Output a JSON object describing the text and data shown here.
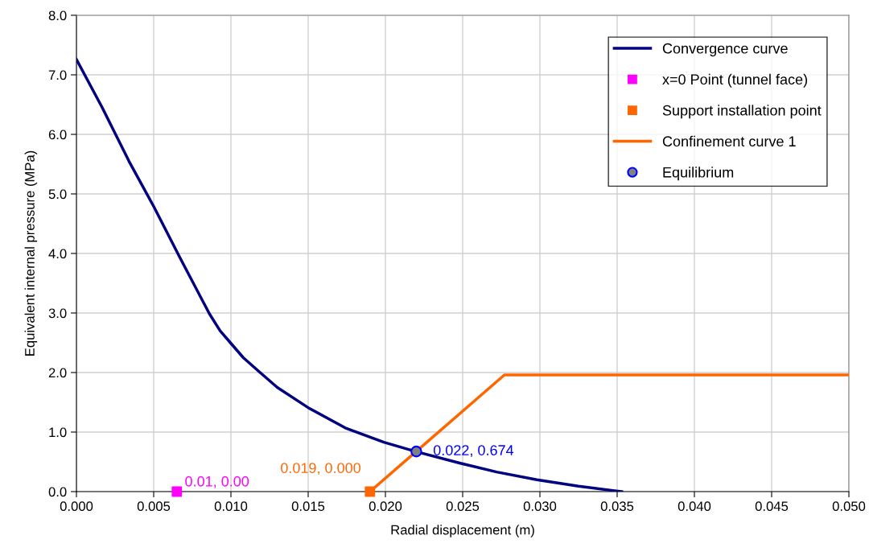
{
  "chart_data": {
    "type": "line",
    "xlabel": "Radial displacement (m)",
    "ylabel": "Equivalent internal pressure (MPa)",
    "xlim": [
      0,
      0.05
    ],
    "xticks": [
      {
        "value": 0,
        "label": "0.000"
      },
      {
        "value": 0.005,
        "label": "0.005"
      },
      {
        "value": 0.01,
        "label": "0.010"
      },
      {
        "value": 0.015,
        "label": "0.015"
      },
      {
        "value": 0.02,
        "label": "0.020"
      },
      {
        "value": 0.025,
        "label": "0.025"
      },
      {
        "value": 0.03,
        "label": "0.030"
      },
      {
        "value": 0.035,
        "label": "0.035"
      },
      {
        "value": 0.04,
        "label": "0.040"
      },
      {
        "value": 0.045,
        "label": "0.045"
      },
      {
        "value": 0.05,
        "label": "0.050"
      }
    ],
    "ylim": [
      0,
      8
    ],
    "yticks": [
      {
        "value": 0,
        "label": "0.0"
      },
      {
        "value": 1,
        "label": "1.0"
      },
      {
        "value": 2,
        "label": "2.0"
      },
      {
        "value": 3,
        "label": "3.0"
      },
      {
        "value": 4,
        "label": "4.0"
      },
      {
        "value": 5,
        "label": "5.0"
      },
      {
        "value": 6,
        "label": "6.0"
      },
      {
        "value": 7,
        "label": "7.0"
      },
      {
        "value": 8,
        "label": "8.0"
      }
    ],
    "grid": true,
    "legend": "top right",
    "series": [
      {
        "name": "Convergence curve",
        "color": "#000080",
        "marker": "none",
        "x": [
          0,
          0.00165,
          0.0034,
          0.005,
          0.0067,
          0.0086,
          0.0093,
          0.01,
          0.0108,
          0.0118,
          0.013,
          0.015,
          0.0174,
          0.0199,
          0.022,
          0.0248,
          0.0272,
          0.0298,
          0.0325,
          0.0353
        ],
        "values": [
          7.26,
          6.46,
          5.55,
          4.79,
          3.93,
          2.99,
          2.7,
          2.49,
          2.25,
          2.02,
          1.75,
          1.41,
          1.07,
          0.83,
          0.67,
          0.48,
          0.33,
          0.2,
          0.09,
          0
        ]
      },
      {
        "name": "x=0 Point (tunnel face)",
        "type": "scatter",
        "color": "#ff00ff",
        "marker": "square",
        "x": [
          0.0065
        ],
        "values": [
          0
        ],
        "value_labels": [
          "0.01, 0.00"
        ]
      },
      {
        "name": "Support installation point",
        "type": "scatter",
        "color": "#ff6600",
        "marker": "square",
        "x": [
          0.019
        ],
        "values": [
          0
        ],
        "value_labels": [
          "0.019, 0.000"
        ]
      },
      {
        "name": "Confinement curve 1",
        "color": "#ff6600",
        "marker": "none",
        "x": [
          0.019,
          0.0277,
          0.05
        ],
        "values": [
          0,
          1.96,
          1.96
        ]
      },
      {
        "name": "Equilibrium",
        "type": "scatter",
        "color": "#0000ff",
        "marker": "circle",
        "x": [
          0.022
        ],
        "values": [
          0.674
        ],
        "value_labels": [
          "0.022, 0.674"
        ]
      }
    ]
  }
}
